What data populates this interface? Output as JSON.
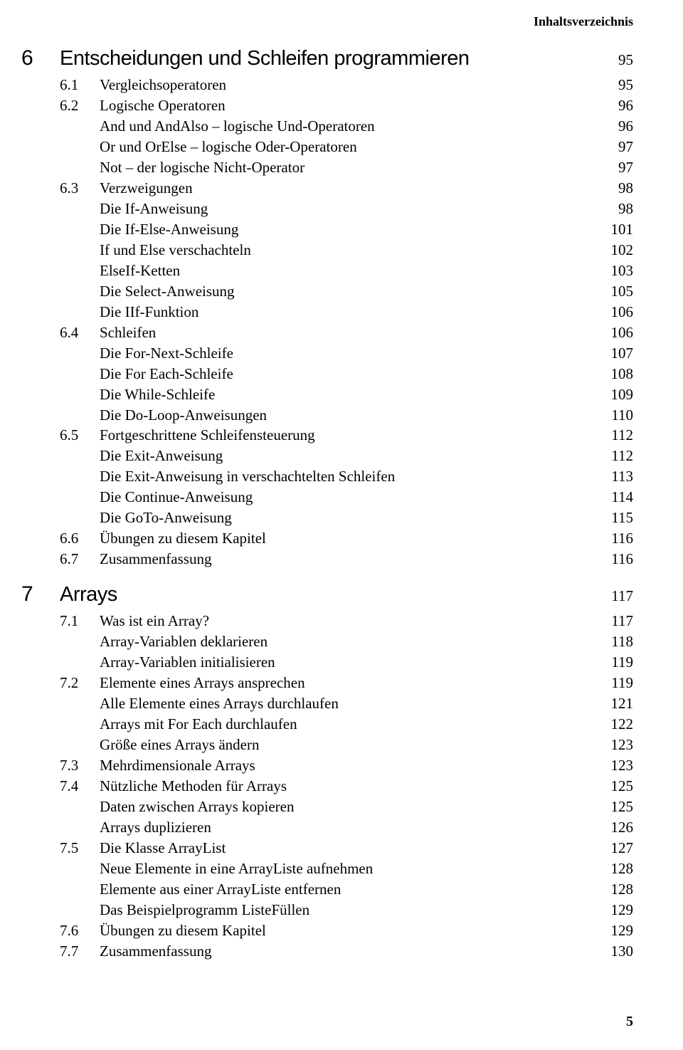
{
  "running_head": "Inhaltsverzeichnis",
  "footer_page": "5",
  "chapters": [
    {
      "num": "6",
      "title": "Entscheidungen und Schleifen programmieren",
      "page": "95",
      "items": [
        {
          "type": "sec",
          "num": "6.1",
          "text": "Vergleichsoperatoren",
          "page": "95"
        },
        {
          "type": "sec",
          "num": "6.2",
          "text": "Logische Operatoren",
          "page": "96"
        },
        {
          "type": "sub",
          "text": "And und AndAlso – logische Und-Operatoren",
          "page": "96"
        },
        {
          "type": "sub",
          "text": "Or und OrElse – logische Oder-Operatoren",
          "page": "97"
        },
        {
          "type": "sub",
          "text": "Not – der logische Nicht-Operator",
          "page": "97"
        },
        {
          "type": "sec",
          "num": "6.3",
          "text": "Verzweigungen",
          "page": "98"
        },
        {
          "type": "sub",
          "text": "Die If-Anweisung",
          "page": "98"
        },
        {
          "type": "sub",
          "text": "Die If-Else-Anweisung",
          "page": "101"
        },
        {
          "type": "sub",
          "text": "If und Else verschachteln",
          "page": "102"
        },
        {
          "type": "sub",
          "text": "ElseIf-Ketten",
          "page": "103"
        },
        {
          "type": "sub",
          "text": "Die Select-Anweisung",
          "page": "105"
        },
        {
          "type": "sub",
          "text": "Die IIf-Funktion",
          "page": "106"
        },
        {
          "type": "sec",
          "num": "6.4",
          "text": "Schleifen",
          "page": "106"
        },
        {
          "type": "sub",
          "text": "Die For-Next-Schleife",
          "page": "107"
        },
        {
          "type": "sub",
          "text": "Die For Each-Schleife",
          "page": "108"
        },
        {
          "type": "sub",
          "text": "Die While-Schleife",
          "page": "109"
        },
        {
          "type": "sub",
          "text": "Die Do-Loop-Anweisungen",
          "page": "110"
        },
        {
          "type": "sec",
          "num": "6.5",
          "text": "Fortgeschrittene Schleifensteuerung",
          "page": "112"
        },
        {
          "type": "sub",
          "text": "Die Exit-Anweisung",
          "page": "112"
        },
        {
          "type": "sub",
          "text": "Die Exit-Anweisung in verschachtelten Schleifen",
          "page": "113"
        },
        {
          "type": "sub",
          "text": "Die Continue-Anweisung",
          "page": "114"
        },
        {
          "type": "sub",
          "text": "Die GoTo-Anweisung",
          "page": "115"
        },
        {
          "type": "sec",
          "num": "6.6",
          "text": "Übungen zu diesem Kapitel",
          "page": "116"
        },
        {
          "type": "sec",
          "num": "6.7",
          "text": "Zusammenfassung",
          "page": "116"
        }
      ]
    },
    {
      "num": "7",
      "title": "Arrays",
      "page": "117",
      "items": [
        {
          "type": "sec",
          "num": "7.1",
          "text": "Was ist ein Array?",
          "page": "117"
        },
        {
          "type": "sub",
          "text": "Array-Variablen deklarieren",
          "page": "118"
        },
        {
          "type": "sub",
          "text": "Array-Variablen initialisieren",
          "page": "119"
        },
        {
          "type": "sec",
          "num": "7.2",
          "text": "Elemente eines Arrays ansprechen",
          "page": "119"
        },
        {
          "type": "sub",
          "text": "Alle Elemente eines Arrays durchlaufen",
          "page": "121"
        },
        {
          "type": "sub",
          "text": "Arrays mit For Each durchlaufen",
          "page": "122"
        },
        {
          "type": "sub",
          "text": "Größe eines Arrays ändern",
          "page": "123"
        },
        {
          "type": "sec",
          "num": "7.3",
          "text": "Mehrdimensionale Arrays",
          "page": "123"
        },
        {
          "type": "sec",
          "num": "7.4",
          "text": "Nützliche Methoden für Arrays",
          "page": "125"
        },
        {
          "type": "sub",
          "text": "Daten zwischen Arrays kopieren",
          "page": "125"
        },
        {
          "type": "sub",
          "text": "Arrays duplizieren",
          "page": "126"
        },
        {
          "type": "sec",
          "num": "7.5",
          "text": "Die Klasse ArrayList",
          "page": "127"
        },
        {
          "type": "sub",
          "text": "Neue Elemente in eine ArrayListe aufnehmen",
          "page": "128"
        },
        {
          "type": "sub",
          "text": "Elemente aus einer ArrayListe entfernen",
          "page": "128"
        },
        {
          "type": "sub",
          "text": "Das Beispielprogramm ListeFüllen",
          "page": "129"
        },
        {
          "type": "sec",
          "num": "7.6",
          "text": "Übungen zu diesem Kapitel",
          "page": "129"
        },
        {
          "type": "sec",
          "num": "7.7",
          "text": "Zusammenfassung",
          "page": "130"
        }
      ]
    }
  ]
}
